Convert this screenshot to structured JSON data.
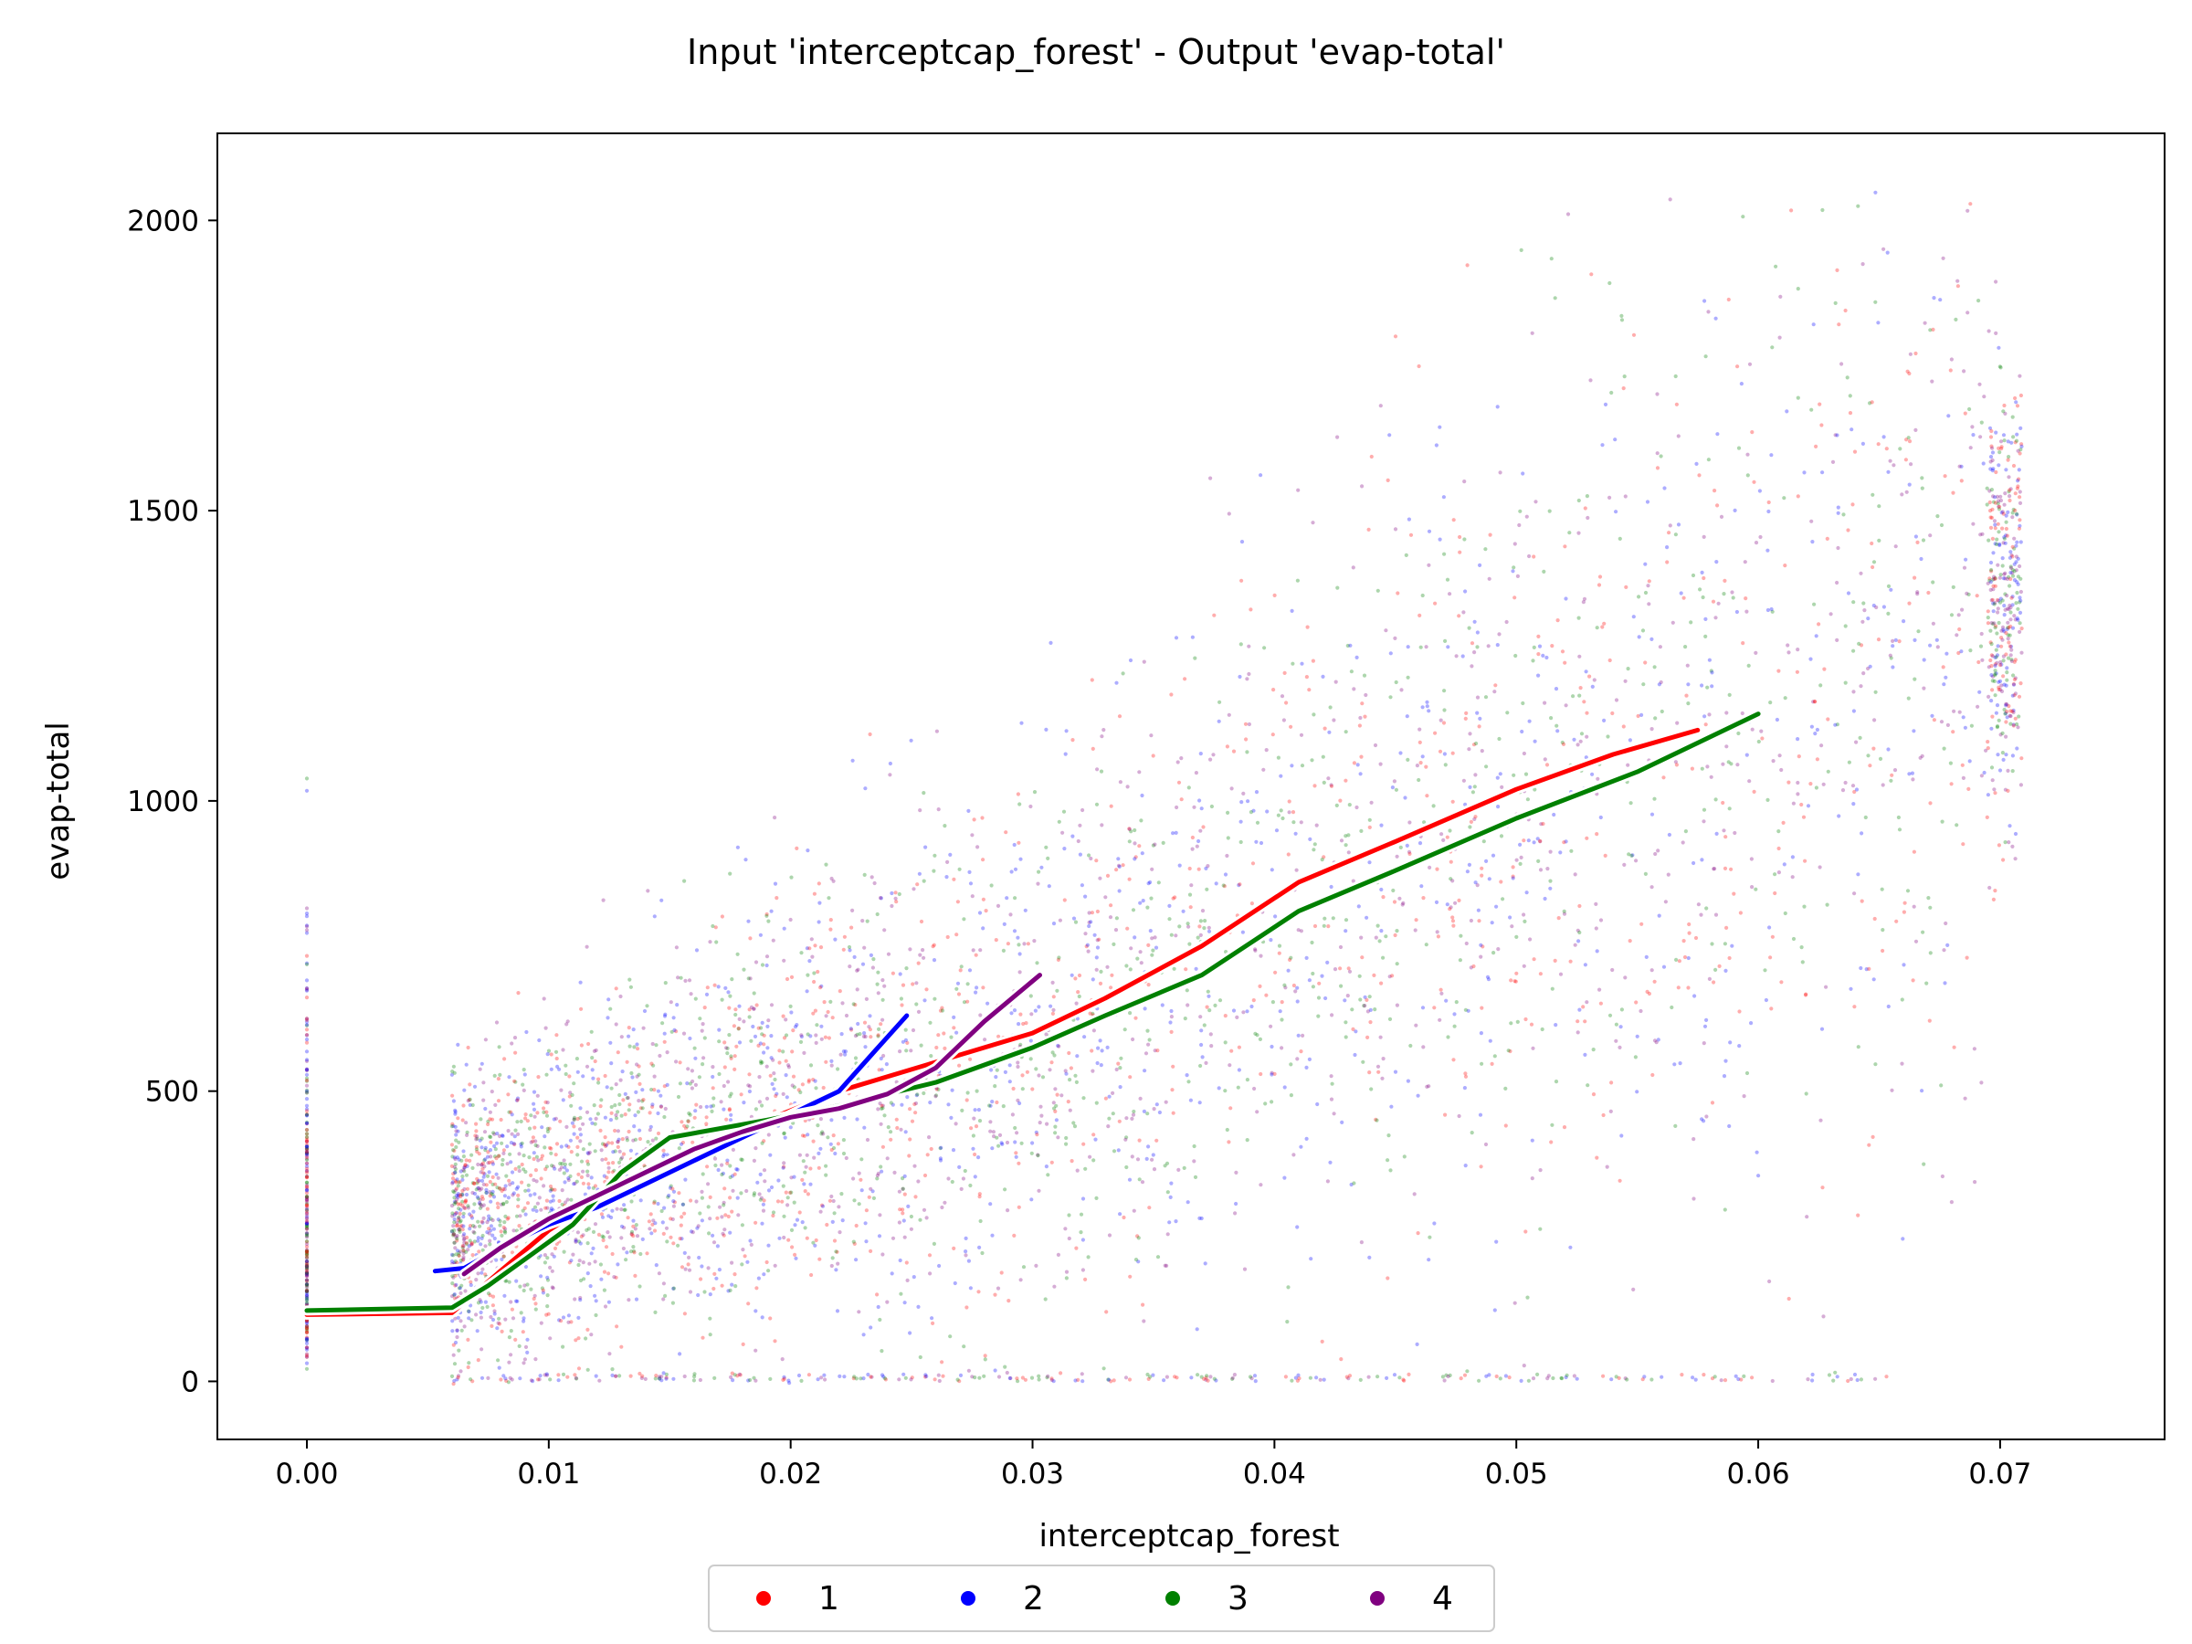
{
  "chart_data": {
    "type": "scatter",
    "title": "Input 'interceptcap_forest' - Output 'evap-total'",
    "xlabel": "interceptcap_forest",
    "ylabel": "evap-total",
    "xlim": [
      -0.0037,
      0.0768
    ],
    "ylim": [
      -100,
      2150
    ],
    "x_ticks": [
      0.0,
      0.01,
      0.02,
      0.03,
      0.04,
      0.05,
      0.06,
      0.07
    ],
    "x_tick_labels": [
      "0.00",
      "0.01",
      "0.02",
      "0.03",
      "0.04",
      "0.05",
      "0.06",
      "0.07"
    ],
    "y_ticks": [
      0,
      500,
      1000,
      1500,
      2000
    ],
    "y_tick_labels": [
      "0",
      "500",
      "1000",
      "1500",
      "2000"
    ],
    "grid": false,
    "legend_position": "bottom-center",
    "series": [
      {
        "name": "1",
        "color": "#ff0000",
        "trend": [
          [
            0.0,
            115
          ],
          [
            0.006,
            118
          ],
          [
            0.008,
            190
          ],
          [
            0.01,
            260
          ],
          [
            0.013,
            340
          ],
          [
            0.016,
            400
          ],
          [
            0.019,
            450
          ],
          [
            0.022,
            500
          ],
          [
            0.026,
            550
          ],
          [
            0.03,
            600
          ],
          [
            0.033,
            660
          ],
          [
            0.037,
            750
          ],
          [
            0.041,
            860
          ],
          [
            0.045,
            930
          ],
          [
            0.05,
            1020
          ],
          [
            0.054,
            1080
          ],
          [
            0.0575,
            1122
          ]
        ]
      },
      {
        "name": "2",
        "color": "#0000ff",
        "trend": [
          [
            0.0053,
            190
          ],
          [
            0.0065,
            195
          ],
          [
            0.008,
            230
          ],
          [
            0.01,
            270
          ],
          [
            0.012,
            300
          ],
          [
            0.014,
            340
          ],
          [
            0.016,
            380
          ],
          [
            0.018,
            420
          ],
          [
            0.02,
            460
          ],
          [
            0.022,
            500
          ],
          [
            0.0235,
            570
          ],
          [
            0.0248,
            630
          ]
        ]
      },
      {
        "name": "3",
        "color": "#008000",
        "trend": [
          [
            0.0,
            122
          ],
          [
            0.006,
            127
          ],
          [
            0.0075,
            165
          ],
          [
            0.009,
            210
          ],
          [
            0.011,
            270
          ],
          [
            0.013,
            360
          ],
          [
            0.015,
            420
          ],
          [
            0.017,
            435
          ],
          [
            0.019,
            450
          ],
          [
            0.022,
            475
          ],
          [
            0.026,
            515
          ],
          [
            0.03,
            575
          ],
          [
            0.033,
            630
          ],
          [
            0.037,
            700
          ],
          [
            0.041,
            810
          ],
          [
            0.045,
            880
          ],
          [
            0.05,
            970
          ],
          [
            0.055,
            1050
          ],
          [
            0.06,
            1150
          ]
        ]
      },
      {
        "name": "4",
        "color": "#800080",
        "trend": [
          [
            0.0065,
            185
          ],
          [
            0.008,
            230
          ],
          [
            0.01,
            280
          ],
          [
            0.012,
            320
          ],
          [
            0.014,
            360
          ],
          [
            0.016,
            400
          ],
          [
            0.018,
            430
          ],
          [
            0.02,
            455
          ],
          [
            0.022,
            470
          ],
          [
            0.024,
            495
          ],
          [
            0.026,
            540
          ],
          [
            0.028,
            620
          ],
          [
            0.0303,
            700
          ]
        ]
      }
    ]
  }
}
